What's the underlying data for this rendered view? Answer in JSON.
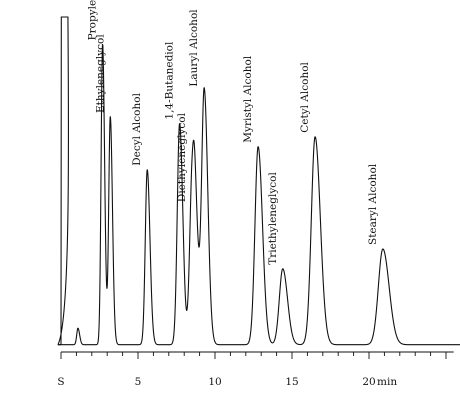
{
  "chart_data": {
    "type": "line",
    "title": "",
    "xlabel": "",
    "ylabel": "",
    "x_unit": "min",
    "xlim": [
      -0.2,
      26
    ],
    "ylim": [
      0,
      100
    ],
    "grid": false,
    "legend": "none",
    "x_ticks": [
      {
        "value": 0,
        "label": "S"
      },
      {
        "value": 5,
        "label": "5"
      },
      {
        "value": 10,
        "label": "10"
      },
      {
        "value": 15,
        "label": "15"
      },
      {
        "value": 20,
        "label": "20"
      }
    ],
    "baseline": 1,
    "solvent_peak": {
      "time": 0.3,
      "height": 100
    },
    "series": [
      {
        "name": "",
        "peaks": [
          {
            "label": "",
            "time": 1.1,
            "height": 6
          },
          {
            "label": "Propyleneglycol",
            "time": 2.7,
            "height": 92
          },
          {
            "label": "Ethyleneglycol",
            "time": 3.2,
            "height": 70
          },
          {
            "label": "Decyl Alcohol",
            "time": 5.6,
            "height": 54
          },
          {
            "label": "1,4-Butanediol",
            "time": 7.7,
            "height": 68
          },
          {
            "label": "Diethyleneglycol",
            "time": 8.5,
            "height": 43
          },
          {
            "label": "",
            "time": 8.7,
            "height": 30
          },
          {
            "label": "Lauryl Alcohol",
            "time": 9.3,
            "height": 78
          },
          {
            "label": "Myristyl Alcohol",
            "time": 12.8,
            "height": 61
          },
          {
            "label": "Triethyleneglycol",
            "time": 14.4,
            "height": 24
          },
          {
            "label": "Cetyl Alcohol",
            "time": 16.5,
            "height": 64
          },
          {
            "label": "Stearyl Alcohol",
            "time": 20.9,
            "height": 30
          }
        ]
      }
    ]
  }
}
